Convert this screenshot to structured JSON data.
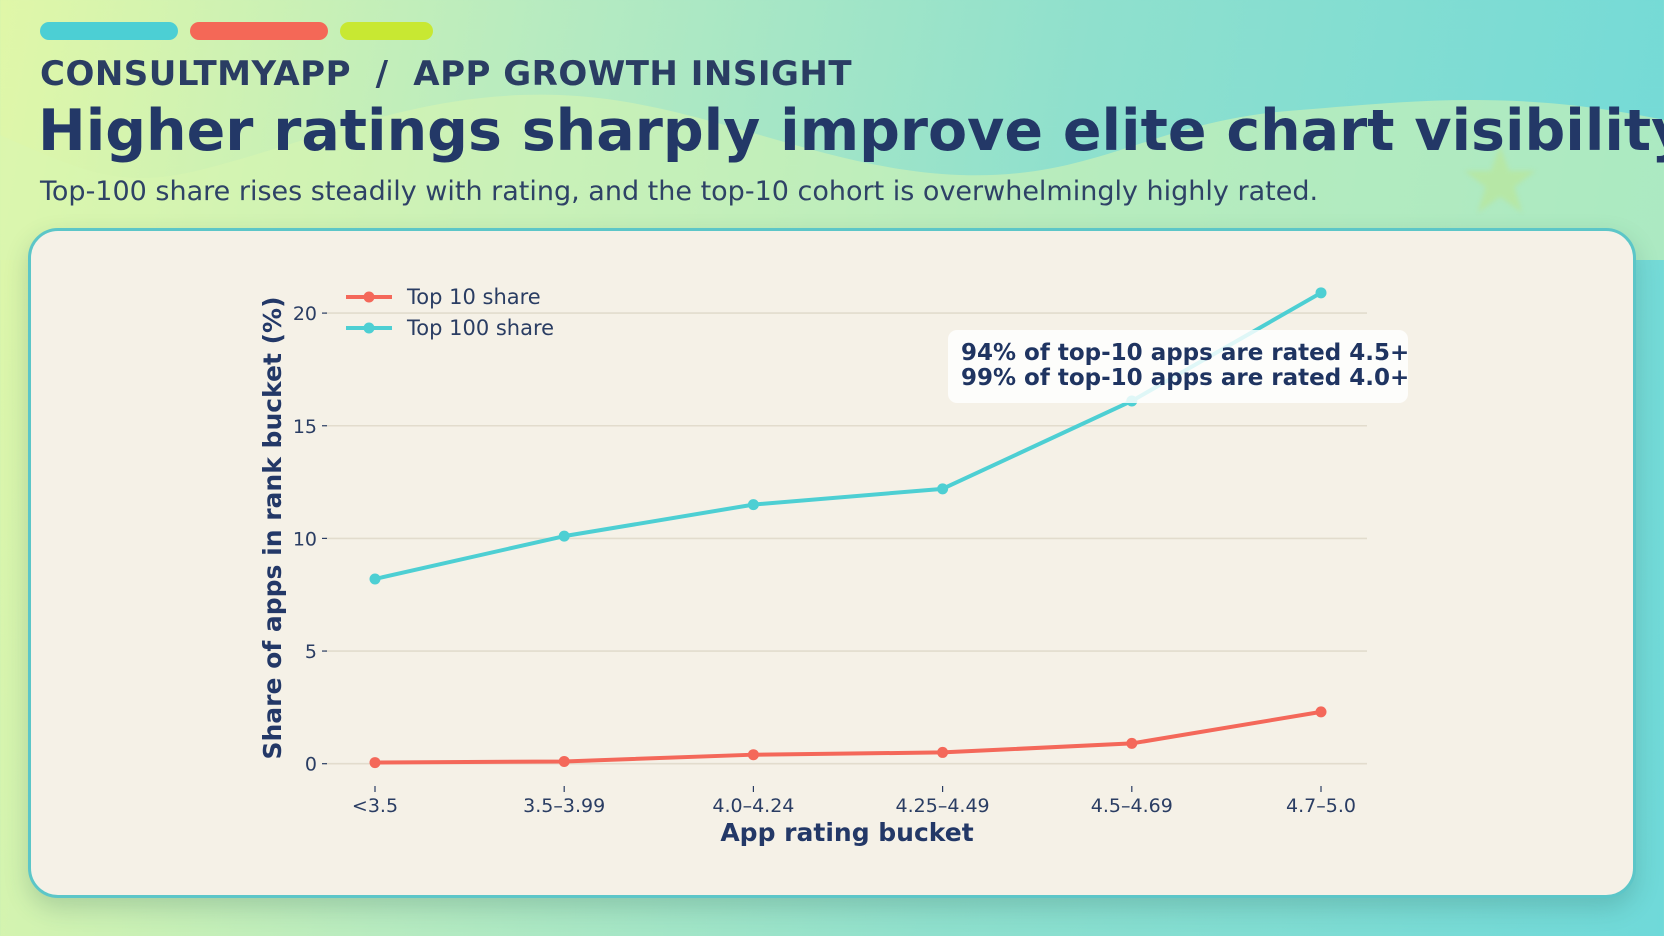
{
  "header": {
    "accent_pills": [
      {
        "name": "teal",
        "color": "#4ccfd4"
      },
      {
        "name": "coral",
        "color": "#f46857"
      },
      {
        "name": "lime",
        "color": "#c8e832"
      }
    ],
    "eyebrow": "CONSULTMYAPP  /  APP GROWTH INSIGHT",
    "title": "Higher ratings sharply improve elite chart visibility",
    "subtitle": "Top-100 share rises steadily with rating, and the top-10 cohort is overwhelmingly highly rated.",
    "decoration_icon": "star-icon"
  },
  "chart_data": {
    "type": "line",
    "title": "",
    "xlabel": "App rating bucket",
    "ylabel": "Share of apps in rank bucket (%)",
    "categories": [
      "<3.5",
      "3.5–3.99",
      "4.0–4.24",
      "4.25–4.49",
      "4.5–4.69",
      "4.7–5.0"
    ],
    "series": [
      {
        "name": "Top 10 share",
        "color": "#f4685a",
        "values": [
          0.05,
          0.1,
          0.4,
          0.5,
          0.9,
          2.3
        ]
      },
      {
        "name": "Top 100 share",
        "color": "#4dcfd3",
        "values": [
          8.2,
          10.1,
          11.5,
          12.2,
          16.1,
          20.9
        ]
      }
    ],
    "ylim": [
      0,
      21
    ],
    "yticks": [
      0,
      5,
      10,
      15,
      20
    ],
    "grid": true,
    "legend_position": "top-left",
    "annotation": {
      "lines": [
        "94% of top-10 apps are rated 4.5+",
        "99% of top-10 apps are rated 4.0+"
      ],
      "position": "top-right"
    }
  }
}
